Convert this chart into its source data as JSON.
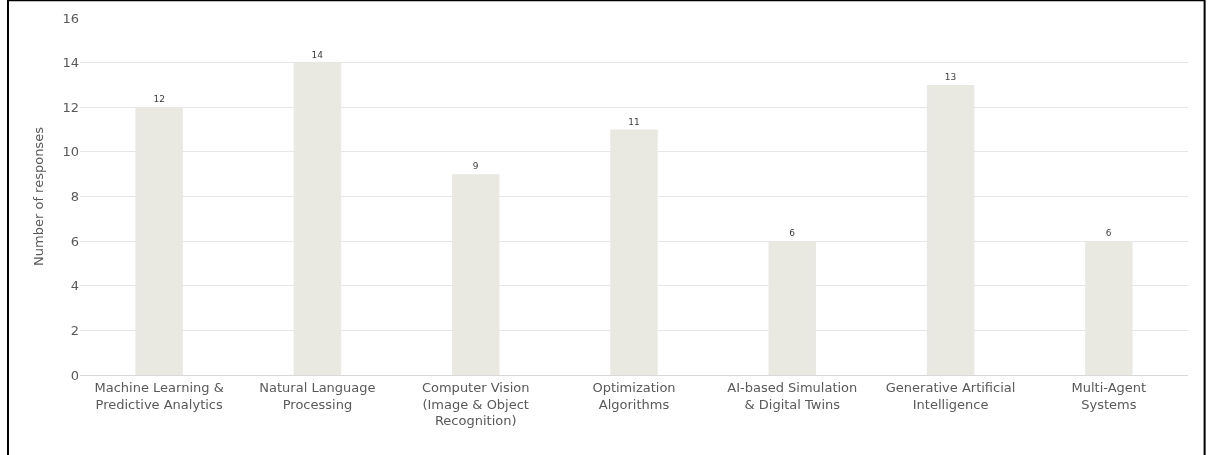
{
  "chart_data": {
    "type": "bar",
    "ylabel": "Number of responses",
    "categories": [
      "Machine Learning &\nPredictive Analytics",
      "Natural Language\nProcessing",
      "Computer Vision\n(Image & Object\nRecognition)",
      "Optimization\nAlgorithms",
      "AI-based Simulation\n& Digital Twins",
      "Generative Artificial\nIntelligence",
      "Multi-Agent\nSystems"
    ],
    "values": [
      12,
      14,
      9,
      11,
      6,
      13,
      6
    ],
    "color": "#e9e8e1",
    "ylim": [
      0,
      16
    ],
    "yticks": [
      0,
      2,
      4,
      6,
      8,
      10,
      12,
      14,
      16
    ],
    "grid": "y",
    "data_labels": true
  }
}
